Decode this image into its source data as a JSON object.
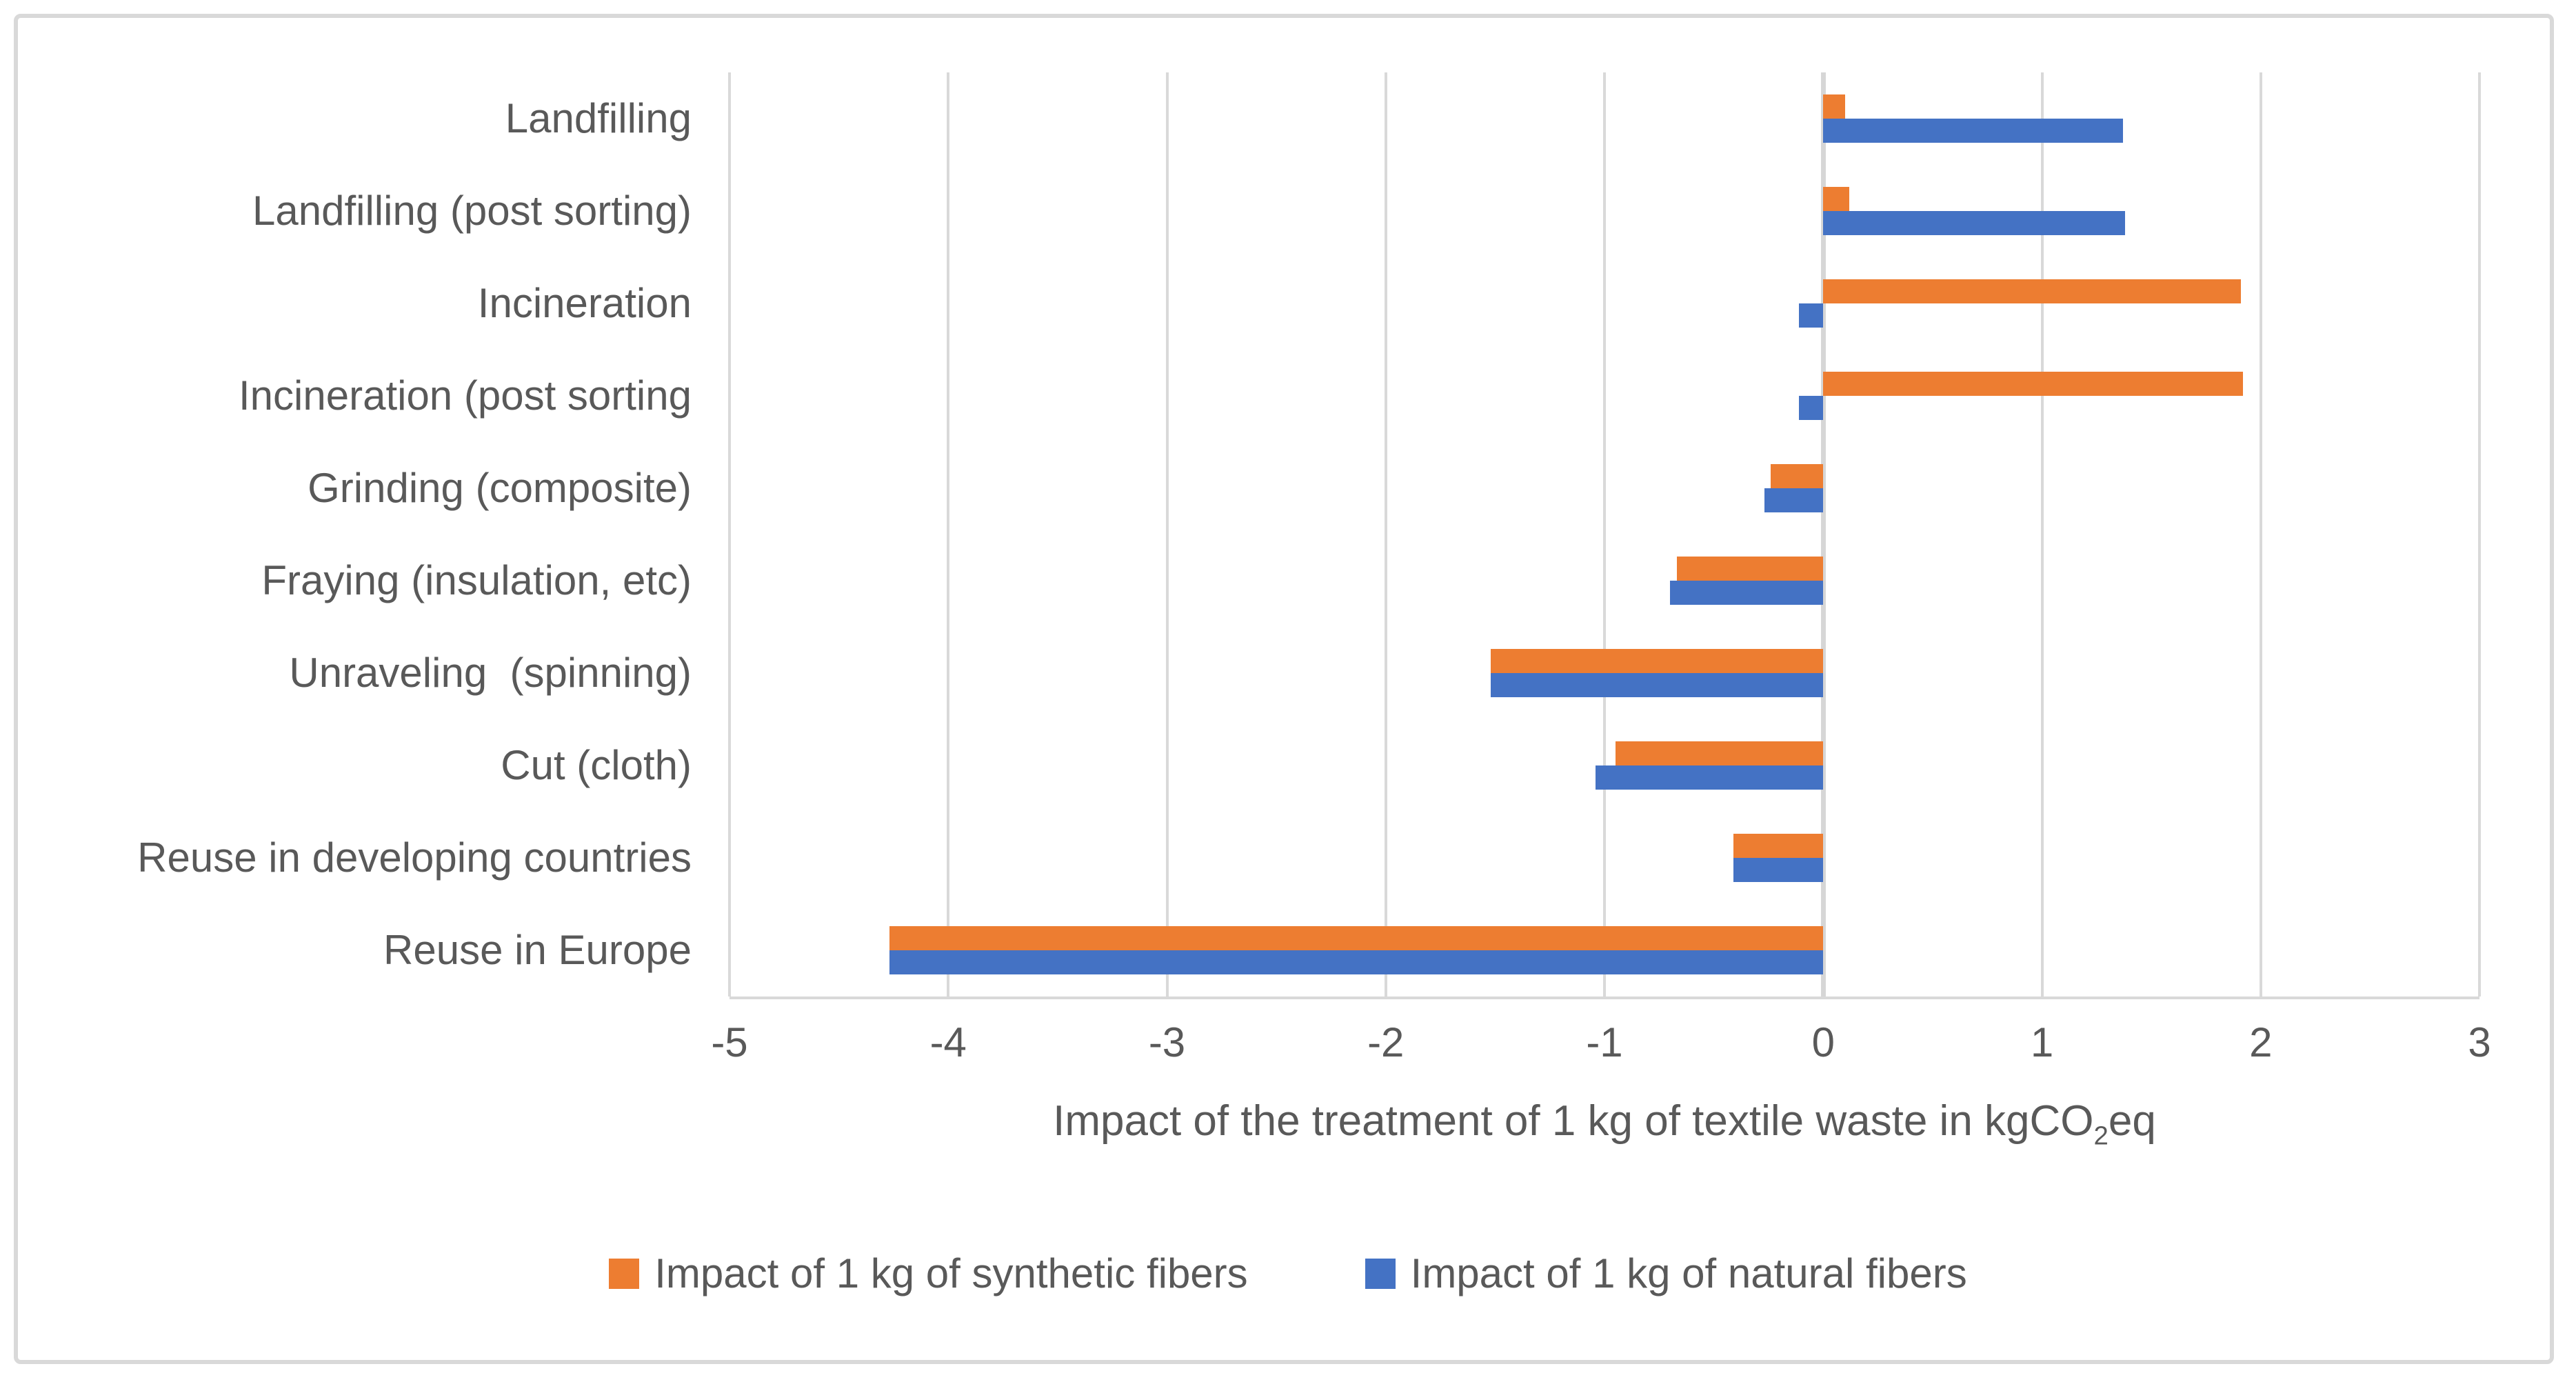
{
  "chart_data": {
    "type": "bar",
    "orientation": "horizontal",
    "title": "",
    "xlabel": "Impact of the treatment of 1 kg of textile waste in kgCO2eq",
    "xlabel_parts": {
      "prefix": "Impact of the treatment of 1 kg of textile waste in kgCO",
      "subscript": "2",
      "suffix": "eq"
    },
    "xlim": [
      -5,
      3
    ],
    "x_ticks": [
      -5,
      -4,
      -3,
      -2,
      -1,
      0,
      1,
      2,
      3
    ],
    "grid": true,
    "legend_position": "bottom",
    "categories": [
      "Landfilling",
      "Landfilling (post sorting)",
      "Incineration",
      "Incineration (post sorting",
      "Grinding (composite)",
      "Fraying (insulation, etc)",
      "Unraveling  (spinning)",
      "Cut (cloth)",
      "Reuse in developing countries",
      "Reuse in Europe"
    ],
    "series": [
      {
        "name": "Impact of 1 kg of synthetic fibers",
        "color": "#ED7D31",
        "values": [
          0.1,
          0.12,
          1.91,
          1.92,
          -0.24,
          -0.67,
          -1.52,
          -0.95,
          -0.41,
          -4.27
        ]
      },
      {
        "name": "Impact of 1 kg of natural fibers",
        "color": "#4472C4",
        "values": [
          1.37,
          1.38,
          -0.11,
          -0.11,
          -0.27,
          -0.7,
          -1.52,
          -1.04,
          -0.41,
          -4.27
        ]
      }
    ],
    "colors": {
      "gridline": "#D9D9D9",
      "zero_line": "#D6D6D6",
      "axis_line": "#D9D9D9",
      "text": "#595959",
      "frame_border": "#D9D9D9",
      "background": "#FFFFFF"
    }
  }
}
